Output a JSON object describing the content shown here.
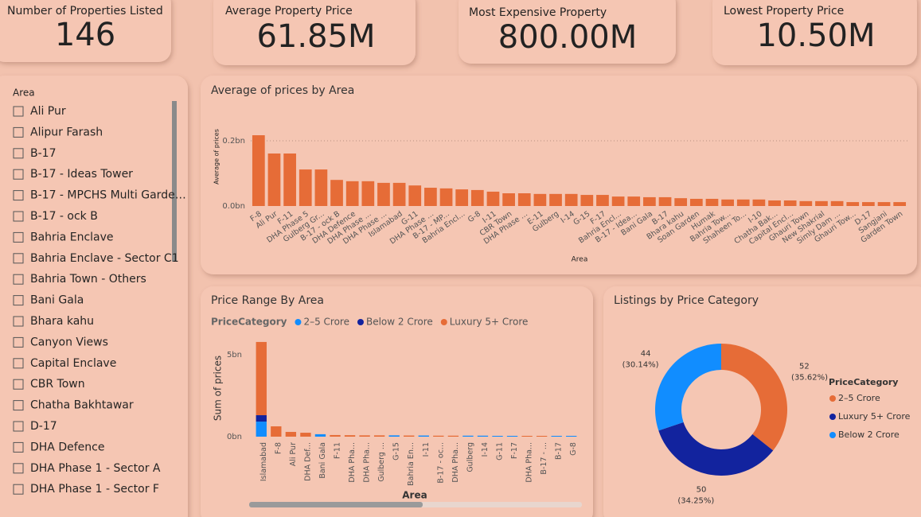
{
  "cards": [
    {
      "label": "Number of Properties Listed",
      "value": "146"
    },
    {
      "label": "Average Property Price",
      "value": "61.85M"
    },
    {
      "label": "Most Expensive Property",
      "value": "800.00M"
    },
    {
      "label": "Lowest Property Price",
      "value": "10.50M"
    }
  ],
  "slicer": {
    "title": "Area",
    "items": [
      "Ali Pur",
      "Alipur Farash",
      "B-17",
      "B-17 - Ideas Tower",
      "B-17 - MPCHS Multi Garde…",
      "B-17 - ock B",
      "Bahria Enclave",
      "Bahria Enclave - Sector C1",
      "Bahria Town - Others",
      "Bani Gala",
      "Bhara kahu",
      "Canyon Views",
      "Capital Enclave",
      "CBR Town",
      "Chatha Bakhtawar",
      "D-17",
      "DHA Defence",
      "DHA Phase 1 - Sector A",
      "DHA Phase 1 - Sector F"
    ]
  },
  "chart_data": [
    {
      "type": "bar",
      "title": "Average of prices by Area",
      "y_label": "Average of prices",
      "x_label": "Area",
      "color": "#e66c37",
      "grid": true,
      "categories": [
        "F-8",
        "Ali Pur",
        "F-11",
        "DHA Phase 5",
        "Gulberg Gr...",
        "B-17 - ock B",
        "DHA Defence",
        "DHA Phase ...",
        "DHA Phase ...",
        "Islamabad",
        "G-11",
        "DHA Phase ...",
        "B-17 - MP...",
        "Bahria Encl...",
        "G-8",
        "I-11",
        "CBR Town",
        "DHA Phase ...",
        "E-11",
        "Gulberg",
        "I-14",
        "G-15",
        "F-17",
        "Bahria Encl...",
        "B-17 - Idea...",
        "Bani Gala",
        "B-17",
        "Bhara kahu",
        "Soan Garden",
        "Humak",
        "Bahria Tow...",
        "Shaheen To...",
        "I-10",
        "Chatha Bak...",
        "Capital Encl...",
        "Ghauri Town",
        "New Shakrial",
        "Simly Dam ...",
        "Ghauri Tow...",
        "D-17",
        "Sangjani",
        "Garden Town"
      ],
      "values": [
        0.217,
        0.161,
        0.161,
        0.112,
        0.112,
        0.08,
        0.076,
        0.076,
        0.071,
        0.071,
        0.063,
        0.056,
        0.054,
        0.051,
        0.049,
        0.044,
        0.039,
        0.039,
        0.037,
        0.037,
        0.037,
        0.034,
        0.034,
        0.029,
        0.029,
        0.027,
        0.027,
        0.024,
        0.022,
        0.022,
        0.02,
        0.02,
        0.02,
        0.017,
        0.017,
        0.015,
        0.015,
        0.015,
        0.012,
        0.012,
        0.012,
        0.012
      ],
      "ylim": [
        0,
        0.25
      ],
      "yticks": [
        {
          "value": 0,
          "label": "0.0bn"
        },
        {
          "value": 0.2,
          "label": "0.2bn"
        }
      ]
    },
    {
      "type": "stacked_bar",
      "title": "Price Range By Area",
      "legend_title": "PriceCategory",
      "y_label": "Sum of prices",
      "x_label": "Area",
      "categories": [
        "Islamabad",
        "F-8",
        "Ali Pur",
        "DHA Def...",
        "Bani Gala",
        "F-11",
        "DHA Pha...",
        "DHA Pha...",
        "Gulberg ...",
        "G-15",
        "Bahria En...",
        "I-11",
        "B-17 - oc...",
        "DHA Pha...",
        "Gulberg",
        "I-14",
        "G-11",
        "F-17",
        "DHA Pha...",
        "B-17 - ...",
        "B-17",
        "G-8"
      ],
      "series": [
        {
          "name": "2–5 Crore",
          "color": "#118dff",
          "values": [
            0.92,
            null,
            null,
            null,
            0.15,
            null,
            null,
            null,
            null,
            0.08,
            null,
            0.07,
            null,
            null,
            0.06,
            0.06,
            0.05,
            0.05,
            null,
            null,
            0.05,
            0.05
          ]
        },
        {
          "name": "Below 2 Crore",
          "color": "#12239e",
          "values": [
            0.39,
            null,
            null,
            null,
            null,
            null,
            null,
            null,
            null,
            null,
            null,
            null,
            null,
            null,
            null,
            null,
            null,
            null,
            null,
            null,
            null,
            null
          ]
        },
        {
          "name": "Luxury 5+ Crore",
          "color": "#e66c37",
          "values": [
            4.47,
            0.63,
            0.29,
            0.24,
            null,
            0.1,
            0.09,
            0.08,
            0.08,
            null,
            0.07,
            null,
            0.06,
            0.06,
            null,
            null,
            null,
            null,
            0.05,
            0.05,
            null,
            null
          ]
        }
      ],
      "ylim": [
        0,
        6
      ],
      "yticks": [
        {
          "value": 0,
          "label": "0bn"
        },
        {
          "value": 5,
          "label": "5bn"
        }
      ]
    },
    {
      "type": "donut",
      "title": "Listings by Price Category",
      "legend_title": "PriceCategory",
      "categories": [
        "2–5 Crore",
        "Luxury 5+ Crore",
        "Below 2 Crore"
      ],
      "values": [
        52,
        50,
        44
      ],
      "percent_labels": [
        "(35.62%)",
        "(34.25%)",
        "(30.14%)"
      ],
      "colors": [
        "#e66c37",
        "#12239e",
        "#118dff"
      ]
    }
  ]
}
